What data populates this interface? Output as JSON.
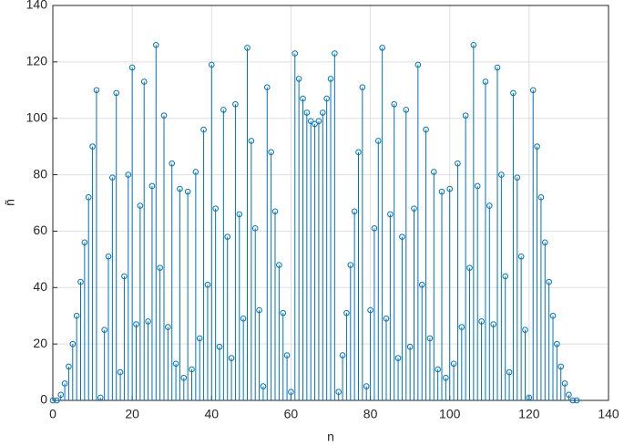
{
  "chart_data": {
    "type": "stem",
    "xlabel": "n",
    "ylabel": "ñ",
    "color": "#0072BD",
    "grid": true,
    "x": [
      0,
      1,
      2,
      3,
      4,
      5,
      6,
      7,
      8,
      9,
      10,
      11,
      12,
      13,
      14,
      15,
      16,
      17,
      18,
      19,
      20,
      21,
      22,
      23,
      24,
      25,
      26,
      27,
      28,
      29,
      30,
      31,
      32,
      33,
      34,
      35,
      36,
      37,
      38,
      39,
      40,
      41,
      42,
      43,
      44,
      45,
      46,
      47,
      48,
      49,
      50,
      51,
      52,
      53,
      54,
      55,
      56,
      57,
      58,
      59,
      60,
      61,
      62,
      63,
      64,
      65,
      66,
      67,
      68,
      69,
      70,
      71,
      72,
      73,
      74,
      75,
      76,
      77,
      78,
      79,
      80,
      81,
      82,
      83,
      84,
      85,
      86,
      87,
      88,
      89,
      90,
      91,
      92,
      93,
      94,
      95,
      96,
      97,
      98,
      99,
      100,
      101,
      102,
      103,
      104,
      105,
      106,
      107,
      108,
      109,
      110,
      111,
      112,
      113,
      114,
      115,
      116,
      117,
      118,
      119,
      120,
      121,
      122,
      123,
      124,
      125,
      126,
      127,
      128,
      129,
      130,
      131,
      132
    ],
    "values": [
      0,
      0,
      2,
      6,
      12,
      20,
      30,
      42,
      56,
      72,
      90,
      110,
      1,
      25,
      51,
      79,
      109,
      10,
      44,
      80,
      118,
      27,
      69,
      113,
      28,
      76,
      126,
      47,
      101,
      26,
      84,
      13,
      75,
      8,
      74,
      11,
      81,
      22,
      96,
      41,
      119,
      68,
      19,
      103,
      58,
      15,
      105,
      66,
      29,
      125,
      92,
      61,
      32,
      5,
      111,
      88,
      67,
      48,
      31,
      16,
      3,
      123,
      114,
      107,
      102,
      99,
      98,
      99,
      102,
      107,
      114,
      123,
      3,
      16,
      31,
      48,
      67,
      88,
      111,
      5,
      32,
      61,
      92,
      125,
      29,
      66,
      105,
      15,
      58,
      103,
      19,
      68,
      119,
      41,
      96,
      22,
      81,
      11,
      74,
      8,
      75,
      13,
      84,
      26,
      101,
      47,
      126,
      76,
      28,
      113,
      69,
      27,
      118,
      80,
      44,
      10,
      109,
      79,
      51,
      25,
      1,
      110,
      90,
      72,
      56,
      42,
      30,
      20,
      12,
      6,
      2,
      0,
      0
    ],
    "xlim": [
      0,
      140
    ],
    "xticks": [
      0,
      20,
      40,
      60,
      80,
      100,
      120,
      140
    ],
    "ylim": [
      0,
      140
    ],
    "yticks": [
      0,
      20,
      40,
      60,
      80,
      100,
      120,
      140
    ]
  }
}
